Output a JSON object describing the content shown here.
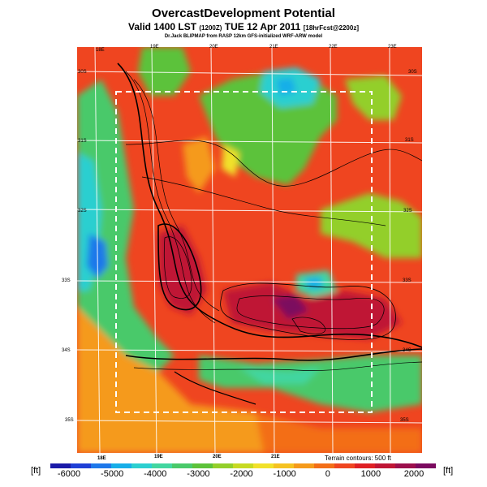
{
  "header": {
    "title": "OvercastDevelopment Potential",
    "subtitle_main": "Valid 1400 LST",
    "subtitle_code": "(1200Z)",
    "subtitle_date": "TUE 12 Apr 2011",
    "subtitle_fcst": "[18hrFcst@2200z]",
    "credit": "Dr.Jack BLIPMAP from RASP 12km GFS-initialized WRF-ARW model"
  },
  "map": {
    "lon_labels_top": [
      "18E",
      "19E",
      "20E",
      "21E",
      "22E",
      "23E"
    ],
    "lon_labels_bottom": [
      "18E",
      "19E",
      "20E",
      "21E"
    ],
    "lat_labels_left": [
      "30S",
      "31S",
      "32S",
      "33S",
      "34S",
      "35S"
    ],
    "lat_labels_right": [
      "30S",
      "31S",
      "32S",
      "33S",
      "34S",
      "35S"
    ],
    "terrain_note": "Terrain contours: 500 ft"
  },
  "colorbar": {
    "unit_left": "[ft]",
    "unit_right": "[ft]",
    "ticks": [
      "-6000",
      "-5000",
      "-4000",
      "-3000",
      "-2000",
      "-1000",
      "0",
      "1000",
      "2000"
    ],
    "colors": [
      "#1a1aa8",
      "#1f3fd6",
      "#1e78ea",
      "#17aee8",
      "#2ccfd0",
      "#42d6a0",
      "#49c96a",
      "#5cc23a",
      "#93cf2a",
      "#c7da22",
      "#f1e12a",
      "#f5c221",
      "#f59a1b",
      "#f36e17",
      "#ef4520",
      "#df1f24",
      "#bf1535",
      "#9c0f4c",
      "#7b0a5f"
    ]
  }
}
